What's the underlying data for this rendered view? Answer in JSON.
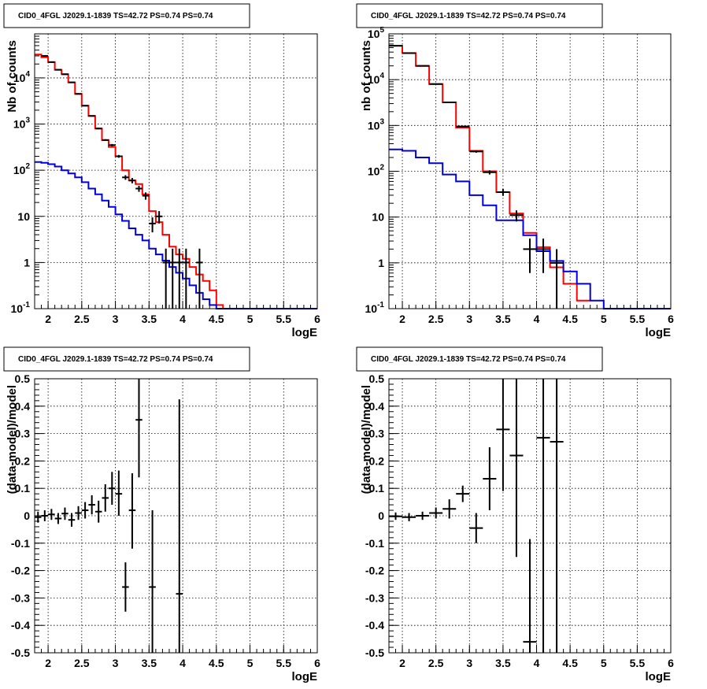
{
  "chart_data": [
    {
      "type": "histogram",
      "title": "CID0_4FGL J2029.1-1839 TS=42.72 PS=0.74 PS=0.74",
      "xlabel": "logE",
      "ylabel": "Nb of counts",
      "xlim": [
        1.8,
        6.0
      ],
      "ylim": [
        0.1,
        90000
      ],
      "yscale": "log",
      "grid": true,
      "x_ticks": [
        "2",
        "2.5",
        "3",
        "3.5",
        "4",
        "4.5",
        "5",
        "5.5",
        "6"
      ],
      "y_ticks": [
        "10^-1",
        "1",
        "10",
        "10^2",
        "10^3",
        "10^4"
      ],
      "bin_width": 0.1,
      "model_total": {
        "color": "#ff0000",
        "x": [
          1.8,
          1.9,
          2.0,
          2.1,
          2.2,
          2.3,
          2.4,
          2.5,
          2.6,
          2.7,
          2.8,
          2.9,
          3.0,
          3.1,
          3.2,
          3.3,
          3.4,
          3.5,
          3.6,
          3.7,
          3.8,
          3.9,
          4.0,
          4.1,
          4.2,
          4.3,
          4.4,
          4.5,
          4.6
        ],
        "y": [
          32000,
          28000,
          22000,
          15000,
          12000,
          8000,
          4500,
          2500,
          1500,
          800,
          450,
          320,
          200,
          100,
          60,
          50,
          30,
          13,
          7.5,
          4,
          2.2,
          1.5,
          1.2,
          0.8,
          0.55,
          0.4,
          0.25,
          0.12,
          0.1
        ]
      },
      "model_source": {
        "color": "#0000dd",
        "x": [
          1.8,
          1.9,
          2.0,
          2.1,
          2.2,
          2.3,
          2.4,
          2.5,
          2.6,
          2.7,
          2.8,
          2.9,
          3.0,
          3.1,
          3.2,
          3.3,
          3.4,
          3.5,
          3.6,
          3.7,
          3.8,
          3.9,
          4.0,
          4.1,
          4.2,
          4.3,
          4.4,
          4.5,
          4.6,
          4.7,
          4.8,
          4.9,
          5.0,
          5.1,
          5.2,
          5.3,
          5.4,
          5.5,
          5.6,
          5.7,
          5.8,
          5.9
        ],
        "y": [
          150,
          145,
          135,
          120,
          100,
          85,
          70,
          55,
          40,
          30,
          22,
          16,
          11,
          8,
          5.5,
          4,
          3,
          2,
          1.5,
          1.1,
          0.8,
          0.6,
          0.45,
          0.32,
          0.22,
          0.16,
          0.12,
          0.1,
          0.1,
          0.1,
          0.1,
          0.1,
          0.1,
          0.1,
          0.1,
          0.1,
          0.1,
          0.1,
          0.1,
          0.1,
          0.1,
          0.1
        ]
      },
      "data": {
        "color": "#000000",
        "points": [
          {
            "x": 1.95,
            "y": 30000,
            "lo": 29800,
            "hi": 30200
          },
          {
            "x": 2.05,
            "y": 22000,
            "lo": 21800,
            "hi": 22200
          },
          {
            "x": 2.15,
            "y": 15000,
            "lo": 14800,
            "hi": 15200
          },
          {
            "x": 2.25,
            "y": 12000,
            "lo": 11800,
            "hi": 12200
          },
          {
            "x": 2.35,
            "y": 8000,
            "lo": 7900,
            "hi": 8100
          },
          {
            "x": 2.45,
            "y": 4500,
            "lo": 4400,
            "hi": 4600
          },
          {
            "x": 2.55,
            "y": 2500,
            "lo": 2450,
            "hi": 2550
          },
          {
            "x": 2.65,
            "y": 1500,
            "lo": 1460,
            "hi": 1540
          },
          {
            "x": 2.75,
            "y": 800,
            "lo": 770,
            "hi": 830
          },
          {
            "x": 2.85,
            "y": 450,
            "lo": 430,
            "hi": 470
          },
          {
            "x": 2.95,
            "y": 350,
            "lo": 330,
            "hi": 370
          },
          {
            "x": 3.05,
            "y": 200,
            "lo": 186,
            "hi": 214
          },
          {
            "x": 3.15,
            "y": 70,
            "lo": 62,
            "hi": 78
          },
          {
            "x": 3.25,
            "y": 60,
            "lo": 52,
            "hi": 68
          },
          {
            "x": 3.35,
            "y": 40,
            "lo": 34,
            "hi": 46
          },
          {
            "x": 3.45,
            "y": 28,
            "lo": 23,
            "hi": 33
          },
          {
            "x": 3.55,
            "y": 7,
            "lo": 4.5,
            "hi": 9.5
          },
          {
            "x": 3.65,
            "y": 10,
            "lo": 7,
            "hi": 13
          },
          {
            "x": 3.75,
            "y": 1,
            "lo": 0.1,
            "hi": 2
          },
          {
            "x": 3.85,
            "y": 1,
            "lo": 0.1,
            "hi": 2
          },
          {
            "x": 3.95,
            "y": 1,
            "lo": 0.1,
            "hi": 2
          },
          {
            "x": 4.05,
            "y": 1,
            "lo": 0.1,
            "hi": 2
          },
          {
            "x": 4.25,
            "y": 1,
            "lo": 0.1,
            "hi": 2
          }
        ]
      }
    },
    {
      "type": "histogram",
      "title": "CID0_4FGL J2029.1-1839 TS=42.72 PS=0.74 PS=0.74",
      "xlabel": "logE",
      "ylabel": "nb of counts",
      "xlim": [
        1.8,
        6.0
      ],
      "ylim": [
        0.1,
        100000
      ],
      "yscale": "log",
      "grid": true,
      "x_ticks": [
        "2",
        "2.5",
        "3",
        "3.5",
        "4",
        "4.5",
        "5",
        "5.5",
        "6"
      ],
      "y_ticks": [
        "10^-1",
        "1",
        "10",
        "10^2",
        "10^3",
        "10^4",
        "10^5"
      ],
      "bin_width": 0.2,
      "model_total": {
        "color": "#ff0000",
        "x": [
          1.8,
          2.0,
          2.2,
          2.4,
          2.6,
          2.8,
          3.0,
          3.2,
          3.4,
          3.6,
          3.8,
          4.0,
          4.2,
          4.4,
          4.6
        ],
        "y": [
          55000,
          38000,
          20000,
          8000,
          3200,
          900,
          280,
          100,
          35,
          12,
          4.5,
          2.2,
          0.8,
          0.35,
          0.15
        ]
      },
      "model_source": {
        "color": "#0000dd",
        "x": [
          1.8,
          2.0,
          2.2,
          2.4,
          2.6,
          2.8,
          3.0,
          3.2,
          3.4,
          3.6,
          3.8,
          4.0,
          4.2,
          4.4,
          4.6,
          4.8,
          5.0,
          5.2,
          5.4,
          5.6,
          5.8
        ],
        "y": [
          300,
          280,
          200,
          150,
          85,
          60,
          30,
          18,
          8.5,
          8.5,
          4,
          1.8,
          1.1,
          0.65,
          0.35,
          0.15,
          0.1,
          0.1,
          0.1,
          0.1,
          0.1
        ]
      },
      "data": {
        "color": "#000000",
        "points": [
          {
            "x": 1.9,
            "y": 55000,
            "lo": 54500,
            "hi": 55500
          },
          {
            "x": 2.1,
            "y": 38000,
            "lo": 37600,
            "hi": 38400
          },
          {
            "x": 2.3,
            "y": 20000,
            "lo": 19700,
            "hi": 20300
          },
          {
            "x": 2.5,
            "y": 8000,
            "lo": 7900,
            "hi": 8100
          },
          {
            "x": 2.7,
            "y": 3200,
            "lo": 3140,
            "hi": 3260
          },
          {
            "x": 2.9,
            "y": 950,
            "lo": 920,
            "hi": 980
          },
          {
            "x": 3.1,
            "y": 270,
            "lo": 254,
            "hi": 286
          },
          {
            "x": 3.3,
            "y": 95,
            "lo": 85,
            "hi": 105
          },
          {
            "x": 3.5,
            "y": 35,
            "lo": 29,
            "hi": 41
          },
          {
            "x": 3.7,
            "y": 11,
            "lo": 8,
            "hi": 14
          },
          {
            "x": 3.9,
            "y": 2,
            "lo": 0.6,
            "hi": 3.4
          },
          {
            "x": 4.1,
            "y": 2,
            "lo": 0.6,
            "hi": 3.4
          },
          {
            "x": 4.3,
            "y": 1,
            "lo": 0.1,
            "hi": 2
          }
        ]
      }
    },
    {
      "type": "scatter",
      "title": "CID0_4FGL J2029.1-1839 TS=42.72 PS=0.74 PS=0.74",
      "xlabel": "logE",
      "ylabel": "(data-model)/model",
      "xlim": [
        1.8,
        6.0
      ],
      "ylim": [
        -0.5,
        0.5
      ],
      "yscale": "linear",
      "grid": true,
      "x_ticks": [
        "2",
        "2.5",
        "3",
        "3.5",
        "4",
        "4.5",
        "5",
        "5.5",
        "6"
      ],
      "y_ticks": [
        "-0.5",
        "-0.4",
        "-0.3",
        "-0.2",
        "-0.1",
        "0",
        "0.1",
        "0.2",
        "0.3",
        "0.4",
        "0.5"
      ],
      "bin_width": 0.1,
      "data": {
        "color": "#000000",
        "points": [
          {
            "x": 1.85,
            "y": -0.005,
            "lo": -0.025,
            "hi": 0.015
          },
          {
            "x": 1.95,
            "y": 0.0,
            "lo": -0.02,
            "hi": 0.02
          },
          {
            "x": 2.05,
            "y": 0.005,
            "lo": -0.015,
            "hi": 0.025
          },
          {
            "x": 2.15,
            "y": -0.01,
            "lo": -0.03,
            "hi": 0.01
          },
          {
            "x": 2.25,
            "y": 0.008,
            "lo": -0.015,
            "hi": 0.03
          },
          {
            "x": 2.35,
            "y": -0.015,
            "lo": -0.04,
            "hi": 0.01
          },
          {
            "x": 2.45,
            "y": 0.01,
            "lo": -0.015,
            "hi": 0.035
          },
          {
            "x": 2.55,
            "y": 0.02,
            "lo": -0.01,
            "hi": 0.05
          },
          {
            "x": 2.65,
            "y": 0.04,
            "lo": 0.005,
            "hi": 0.075
          },
          {
            "x": 2.75,
            "y": 0.015,
            "lo": -0.025,
            "hi": 0.055
          },
          {
            "x": 2.85,
            "y": 0.065,
            "lo": 0.015,
            "hi": 0.115
          },
          {
            "x": 2.95,
            "y": 0.1,
            "lo": 0.04,
            "hi": 0.16
          },
          {
            "x": 3.05,
            "y": 0.08,
            "lo": 0.0,
            "hi": 0.165
          },
          {
            "x": 3.15,
            "y": -0.26,
            "lo": -0.35,
            "hi": -0.17
          },
          {
            "x": 3.25,
            "y": 0.02,
            "lo": -0.12,
            "hi": 0.155
          },
          {
            "x": 3.35,
            "y": 0.35,
            "lo": 0.14,
            "hi": 0.56
          },
          {
            "x": 3.55,
            "y": -0.26,
            "lo": -0.55,
            "hi": 0.02
          },
          {
            "x": 3.95,
            "y": -0.285,
            "lo": -0.55,
            "hi": 0.425
          }
        ]
      }
    },
    {
      "type": "scatter",
      "title": "CID0_4FGL J2029.1-1839 TS=42.72 PS=0.74 PS=0.74",
      "xlabel": "logE",
      "ylabel": "(data-model)/model",
      "xlim": [
        1.8,
        6.0
      ],
      "ylim": [
        -0.5,
        0.5
      ],
      "yscale": "linear",
      "grid": true,
      "x_ticks": [
        "2",
        "2.5",
        "3",
        "3.5",
        "4",
        "4.5",
        "5",
        "5.5",
        "6"
      ],
      "y_ticks": [
        "-0.5",
        "-0.4",
        "-0.3",
        "-0.2",
        "-0.1",
        "0",
        "0.1",
        "0.2",
        "0.3",
        "0.4",
        "0.5"
      ],
      "bin_width": 0.2,
      "data": {
        "color": "#000000",
        "points": [
          {
            "x": 1.9,
            "y": -0.002,
            "lo": -0.015,
            "hi": 0.012
          },
          {
            "x": 2.1,
            "y": -0.005,
            "lo": -0.02,
            "hi": 0.01
          },
          {
            "x": 2.3,
            "y": 0.0,
            "lo": -0.015,
            "hi": 0.015
          },
          {
            "x": 2.5,
            "y": 0.01,
            "lo": -0.01,
            "hi": 0.03
          },
          {
            "x": 2.7,
            "y": 0.025,
            "lo": -0.01,
            "hi": 0.06
          },
          {
            "x": 2.9,
            "y": 0.08,
            "lo": 0.05,
            "hi": 0.11
          },
          {
            "x": 3.1,
            "y": -0.045,
            "lo": -0.1,
            "hi": 0.01
          },
          {
            "x": 3.3,
            "y": 0.135,
            "lo": 0.02,
            "hi": 0.25
          },
          {
            "x": 3.5,
            "y": 0.315,
            "lo": 0.09,
            "hi": 0.54
          },
          {
            "x": 3.7,
            "y": 0.22,
            "lo": -0.15,
            "hi": 0.59
          },
          {
            "x": 3.9,
            "y": -0.46,
            "lo": -0.55,
            "hi": -0.085
          },
          {
            "x": 4.1,
            "y": 0.285,
            "lo": -0.55,
            "hi": 1.1
          },
          {
            "x": 4.3,
            "y": 0.27,
            "lo": -0.55,
            "hi": 1.1
          }
        ]
      }
    }
  ]
}
